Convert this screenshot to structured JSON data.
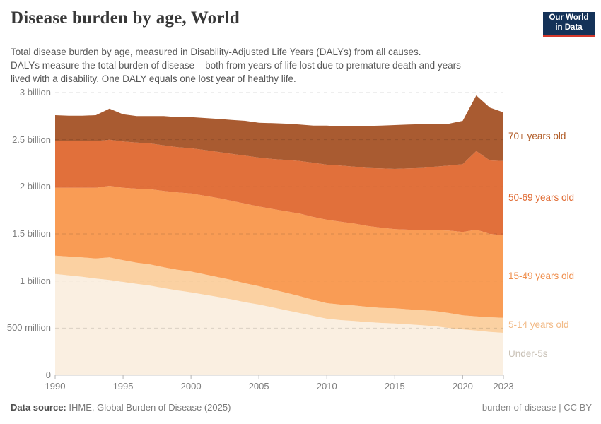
{
  "header": {
    "title": "Disease burden by age, World",
    "subtitle_lines": [
      "Total disease burden by age, measured in Disability-Adjusted Life Years (DALYs) from all causes.",
      "DALYs measure the total burden of disease – both from years of life lost due to premature death and years",
      "lived with a disability. One DALY equals one lost year of healthy life."
    ]
  },
  "logo": {
    "line1": "Our World",
    "line2": "in Data",
    "bg_color": "#143258",
    "accent_color": "#D4382B"
  },
  "chart_data": {
    "type": "area",
    "stacked": true,
    "title": "Disease burden by age, World",
    "unit": "billion DALYs",
    "xlabel": "",
    "ylabel": "",
    "grid": "dashed-horizontal",
    "legend_position": "right",
    "ylim": [
      0,
      3
    ],
    "x": [
      1990,
      1991,
      1992,
      1993,
      1994,
      1995,
      1996,
      1997,
      1998,
      1999,
      2000,
      2001,
      2002,
      2003,
      2004,
      2005,
      2006,
      2007,
      2008,
      2009,
      2010,
      2011,
      2012,
      2013,
      2014,
      2015,
      2016,
      2017,
      2018,
      2019,
      2020,
      2021,
      2022,
      2023
    ],
    "xticks": [
      1990,
      1995,
      2000,
      2005,
      2010,
      2015,
      2020,
      2023
    ],
    "yticks": [
      {
        "value": 0,
        "label": "0"
      },
      {
        "value": 0.5,
        "label": "500 million"
      },
      {
        "value": 1,
        "label": "1 billion"
      },
      {
        "value": 1.5,
        "label": "1.5 billion"
      },
      {
        "value": 2,
        "label": "2 billion"
      },
      {
        "value": 2.5,
        "label": "2.5 billion"
      },
      {
        "value": 3,
        "label": "3 billion"
      }
    ],
    "series": [
      {
        "id": "under-5s",
        "label": "Under-5s",
        "color": "#FAEFE1",
        "label_color": "#C9C1B6",
        "values": [
          1.075,
          1.06,
          1.045,
          1.025,
          1.01,
          0.99,
          0.97,
          0.95,
          0.925,
          0.9,
          0.88,
          0.855,
          0.83,
          0.805,
          0.775,
          0.75,
          0.72,
          0.69,
          0.66,
          0.63,
          0.6,
          0.585,
          0.575,
          0.565,
          0.555,
          0.55,
          0.54,
          0.53,
          0.52,
          0.5,
          0.485,
          0.475,
          0.46,
          0.45
        ]
      },
      {
        "id": "5-14-years-old",
        "label": "5-14 years old",
        "color": "#FBD1A2",
        "label_color": "#F2BA86",
        "values": [
          0.195,
          0.2,
          0.205,
          0.215,
          0.24,
          0.23,
          0.225,
          0.225,
          0.22,
          0.22,
          0.22,
          0.215,
          0.21,
          0.205,
          0.2,
          0.195,
          0.19,
          0.185,
          0.18,
          0.17,
          0.165,
          0.165,
          0.165,
          0.16,
          0.16,
          0.16,
          0.16,
          0.16,
          0.16,
          0.16,
          0.15,
          0.15,
          0.155,
          0.16
        ]
      },
      {
        "id": "15-49-years-old",
        "label": "15-49 years old",
        "color": "#F99C55",
        "label_color": "#EF8E4C",
        "values": [
          0.72,
          0.73,
          0.74,
          0.75,
          0.76,
          0.77,
          0.785,
          0.8,
          0.81,
          0.82,
          0.83,
          0.835,
          0.84,
          0.84,
          0.845,
          0.845,
          0.855,
          0.865,
          0.875,
          0.88,
          0.885,
          0.88,
          0.87,
          0.86,
          0.85,
          0.84,
          0.845,
          0.85,
          0.86,
          0.875,
          0.885,
          0.92,
          0.885,
          0.875
        ]
      },
      {
        "id": "50-69-years-old",
        "label": "50-69 years old",
        "color": "#E1703B",
        "label_color": "#E06C35",
        "values": [
          0.5,
          0.5,
          0.5,
          0.495,
          0.49,
          0.49,
          0.49,
          0.485,
          0.485,
          0.48,
          0.48,
          0.485,
          0.49,
          0.5,
          0.51,
          0.52,
          0.53,
          0.545,
          0.56,
          0.575,
          0.585,
          0.595,
          0.605,
          0.615,
          0.63,
          0.64,
          0.65,
          0.66,
          0.675,
          0.69,
          0.72,
          0.835,
          0.78,
          0.79
        ]
      },
      {
        "id": "70plus-years-old",
        "label": "70+ years old",
        "color": "#A95B31",
        "label_color": "#B05A24",
        "values": [
          0.27,
          0.265,
          0.265,
          0.275,
          0.33,
          0.29,
          0.28,
          0.29,
          0.31,
          0.32,
          0.33,
          0.34,
          0.35,
          0.36,
          0.37,
          0.37,
          0.38,
          0.385,
          0.385,
          0.395,
          0.415,
          0.415,
          0.425,
          0.445,
          0.455,
          0.465,
          0.465,
          0.465,
          0.455,
          0.445,
          0.46,
          0.59,
          0.56,
          0.515
        ]
      }
    ]
  },
  "footer": {
    "source_label": "Data source:",
    "source_text": " IHME, Global Burden of Disease (2025)",
    "license_text": "burden-of-disease | CC BY"
  }
}
